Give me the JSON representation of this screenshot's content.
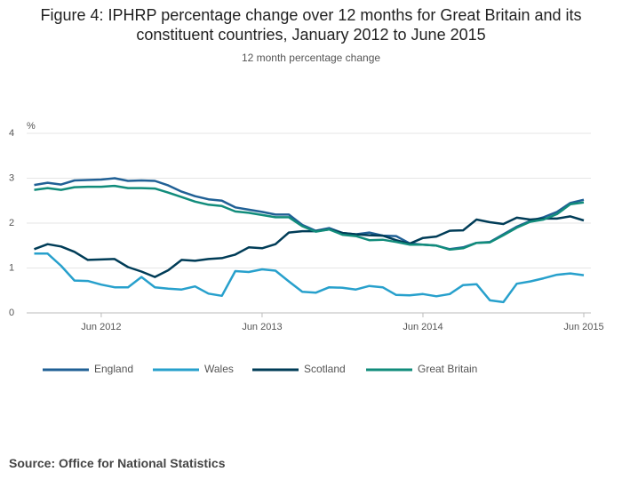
{
  "chart_data": {
    "type": "line",
    "title": "Figure 4: IPHRP percentage change over 12 months for Great Britain and its constituent countries, January 2012 to June 2015",
    "subtitle": "12 month percentage change",
    "y_label": "%",
    "source": "Source: Office for National Statistics",
    "categories": [
      null,
      null,
      null,
      null,
      null,
      "Jun 2012",
      null,
      null,
      null,
      null,
      null,
      null,
      null,
      null,
      null,
      null,
      null,
      "Jun 2013",
      null,
      null,
      null,
      null,
      null,
      null,
      null,
      null,
      null,
      null,
      null,
      "Jun 2014",
      null,
      null,
      null,
      null,
      null,
      null,
      null,
      null,
      null,
      null,
      null,
      "Jun 2015"
    ],
    "ylim": [
      0,
      4
    ],
    "yticks": [
      0,
      1,
      2,
      3,
      4
    ],
    "grid": true,
    "legend": "bottom",
    "series": [
      {
        "name": "England",
        "color": "#206095",
        "values": [
          2.85,
          2.9,
          2.86,
          2.95,
          2.96,
          2.97,
          3.0,
          2.94,
          2.95,
          2.94,
          2.84,
          2.7,
          2.6,
          2.53,
          2.5,
          2.35,
          2.3,
          2.25,
          2.19,
          2.19,
          1.96,
          1.83,
          1.89,
          1.78,
          1.75,
          1.79,
          1.72,
          1.71,
          1.55,
          1.52,
          1.5,
          1.42,
          1.46,
          1.56,
          1.58,
          1.75,
          1.92,
          2.05,
          2.13,
          2.25,
          2.45,
          2.52
        ]
      },
      {
        "name": "Wales",
        "color": "#27a0cc",
        "values": [
          1.32,
          1.32,
          1.05,
          0.72,
          0.71,
          0.63,
          0.57,
          0.57,
          0.8,
          0.57,
          0.54,
          0.52,
          0.59,
          0.43,
          0.38,
          0.93,
          0.91,
          0.97,
          0.94,
          0.7,
          0.47,
          0.45,
          0.57,
          0.56,
          0.52,
          0.6,
          0.57,
          0.4,
          0.39,
          0.42,
          0.37,
          0.42,
          0.62,
          0.64,
          0.28,
          0.24,
          0.65,
          0.7,
          0.77,
          0.85,
          0.88,
          0.84
        ]
      },
      {
        "name": "Scotland",
        "color": "#003c57",
        "values": [
          1.42,
          1.53,
          1.48,
          1.36,
          1.18,
          1.19,
          1.2,
          1.02,
          0.92,
          0.8,
          0.95,
          1.18,
          1.16,
          1.2,
          1.22,
          1.3,
          1.46,
          1.44,
          1.53,
          1.79,
          1.82,
          1.82,
          1.86,
          1.78,
          1.75,
          1.73,
          1.72,
          1.62,
          1.54,
          1.67,
          1.7,
          1.83,
          1.84,
          2.08,
          2.02,
          1.98,
          2.12,
          2.08,
          2.1,
          2.1,
          2.15,
          2.06
        ]
      },
      {
        "name": "Great Britain",
        "color": "#118c7b",
        "values": [
          2.74,
          2.78,
          2.74,
          2.8,
          2.81,
          2.81,
          2.83,
          2.78,
          2.78,
          2.77,
          2.68,
          2.58,
          2.48,
          2.41,
          2.38,
          2.26,
          2.23,
          2.18,
          2.13,
          2.13,
          1.93,
          1.81,
          1.86,
          1.74,
          1.71,
          1.62,
          1.63,
          1.58,
          1.52,
          1.52,
          1.5,
          1.41,
          1.44,
          1.56,
          1.57,
          1.73,
          1.9,
          2.03,
          2.08,
          2.2,
          2.42,
          2.46
        ]
      }
    ]
  }
}
